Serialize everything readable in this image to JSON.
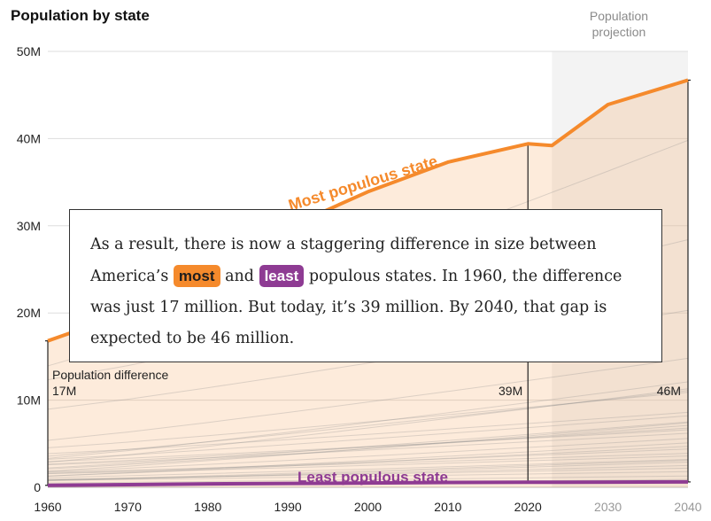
{
  "chart_data": {
    "type": "line",
    "title": "Population by state",
    "projection_label": "Population projection",
    "x_ticks": [
      1960,
      1970,
      1980,
      1990,
      2000,
      2010,
      2020,
      2030,
      2040
    ],
    "y_ticks": [
      0,
      10,
      20,
      30,
      40,
      50
    ],
    "y_tick_labels": [
      "0",
      "10M",
      "20M",
      "30M",
      "40M",
      "50M"
    ],
    "xlim": [
      1960,
      2040
    ],
    "ylim": [
      0,
      50
    ],
    "y_unit": "millions",
    "projection_start": 2023,
    "series": [
      {
        "name": "Most populous state",
        "color": "#f58a2c",
        "x": [
          1960,
          1970,
          1980,
          1990,
          2000,
          2010,
          2020,
          2023,
          2030,
          2040
        ],
        "values": [
          16.8,
          20.0,
          23.7,
          29.8,
          33.9,
          37.3,
          39.4,
          39.2,
          43.9,
          46.7
        ]
      },
      {
        "name": "Least populous state",
        "color": "#8e3b93",
        "x": [
          1960,
          1970,
          1980,
          1990,
          2000,
          2010,
          2020,
          2030,
          2040
        ],
        "values": [
          0.23,
          0.3,
          0.4,
          0.45,
          0.49,
          0.56,
          0.58,
          0.6,
          0.62
        ]
      }
    ],
    "background_states_end_values": [
      39.8,
      28.4,
      20.3,
      14.8,
      12.1,
      11.3,
      11.1,
      10.9,
      8.6,
      8.2,
      7.5,
      7.4,
      7.1,
      6.8,
      6.6,
      6.2,
      5.6,
      5.1,
      4.7,
      4.4,
      3.9,
      3.6,
      3.2,
      3.1,
      2.9,
      2.5,
      2.2,
      1.8,
      1.3,
      0.9
    ],
    "difference": {
      "label": "Population difference",
      "markers": [
        {
          "x": 1960,
          "top": 16.8,
          "bottom": 0.23,
          "label": "17M"
        },
        {
          "x": 2020,
          "top": 39.4,
          "bottom": 0.58,
          "label": "39M"
        },
        {
          "x": 2040,
          "top": 46.7,
          "bottom": 0.62,
          "label": "46M"
        }
      ]
    }
  },
  "callout": {
    "text_1": "As a result, there is now a staggering difference in size between America’s ",
    "most": "most",
    "text_2": " and ",
    "least": "least",
    "text_3": " populous states. In 1960, the difference was just 17 million. But today, it’s 39 million. By 2040, that gap is expected to be 46 million."
  }
}
